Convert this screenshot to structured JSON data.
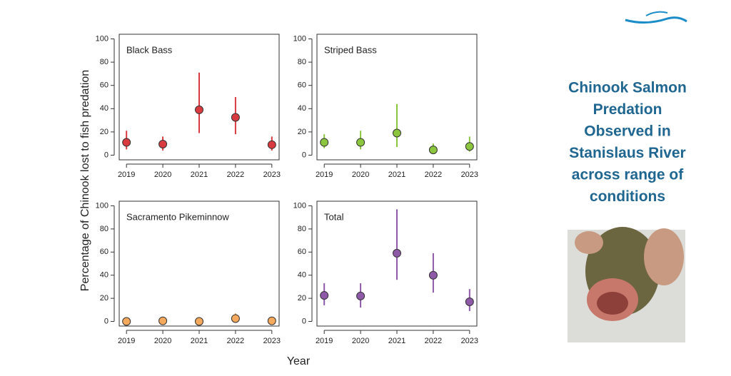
{
  "y_label": "Percentage of Chinook lost to fish predation",
  "x_label": "Year",
  "headline": [
    "Chinook Salmon",
    "Predation",
    "Observed in",
    "Stanislaus River",
    "across range of",
    "conditions"
  ],
  "chart_data": [
    {
      "type": "errorpoint",
      "title": "Black Bass",
      "color": "#d83a3f",
      "categories": [
        "2019",
        "2020",
        "2021",
        "2022",
        "2023"
      ],
      "values": [
        11,
        9.5,
        39,
        32.5,
        9
      ],
      "lower": [
        5,
        4,
        19,
        18,
        4
      ],
      "upper": [
        21,
        16,
        71,
        50,
        16
      ],
      "ylim": [
        -4,
        104
      ],
      "yticks": [
        0,
        20,
        40,
        60,
        80,
        100
      ]
    },
    {
      "type": "errorpoint",
      "title": "Striped Bass",
      "color": "#8cc63f",
      "categories": [
        "2019",
        "2020",
        "2021",
        "2022",
        "2023"
      ],
      "values": [
        11,
        11,
        19,
        4.5,
        7.5
      ],
      "lower": [
        6,
        5,
        7,
        2,
        3
      ],
      "upper": [
        18,
        21,
        44,
        10,
        16
      ],
      "ylim": [
        -4,
        104
      ],
      "yticks": [
        0,
        20,
        40,
        60,
        80,
        100
      ]
    },
    {
      "type": "errorpoint",
      "title": "Sacramento Pikeminnow",
      "color": "#f5a95c",
      "categories": [
        "2019",
        "2020",
        "2021",
        "2022",
        "2023"
      ],
      "values": [
        0,
        0.5,
        0,
        2.5,
        0.5
      ],
      "lower": [
        0,
        0,
        0,
        0,
        0
      ],
      "upper": [
        1,
        2,
        1,
        7,
        2
      ],
      "ylim": [
        -4,
        104
      ],
      "yticks": [
        0,
        20,
        40,
        60,
        80,
        100
      ]
    },
    {
      "type": "errorpoint",
      "title": "Total",
      "color": "#8e5aa8",
      "categories": [
        "2019",
        "2020",
        "2021",
        "2022",
        "2023"
      ],
      "values": [
        22.5,
        22,
        59,
        40,
        17
      ],
      "lower": [
        14,
        12,
        36,
        25,
        9
      ],
      "upper": [
        33,
        33,
        97,
        59,
        28
      ],
      "ylim": [
        -4,
        104
      ],
      "yticks": [
        0,
        20,
        40,
        60,
        80,
        100
      ]
    }
  ]
}
